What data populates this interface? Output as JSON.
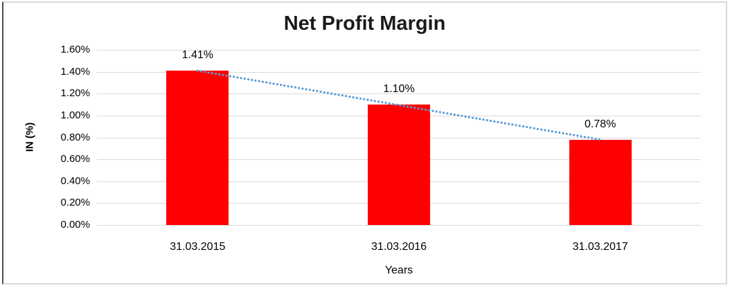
{
  "chart_data": {
    "type": "bar",
    "title": "Net Profit Margin",
    "xlabel": "Years",
    "ylabel": "IN (%)",
    "categories": [
      "31.03.2015",
      "31.03.2016",
      "31.03.2017"
    ],
    "values": [
      1.41,
      1.1,
      0.78
    ],
    "data_labels": [
      "1.41%",
      "1.10%",
      "0.78%"
    ],
    "y_ticks": [
      "0.00%",
      "0.20%",
      "0.40%",
      "0.60%",
      "0.80%",
      "1.00%",
      "1.20%",
      "1.40%",
      "1.60%"
    ],
    "y_tick_values": [
      0.0,
      0.2,
      0.4,
      0.6,
      0.8,
      1.0,
      1.2,
      1.4,
      1.6
    ],
    "ylim": [
      0,
      1.6
    ],
    "grid": true,
    "legend_position": "none",
    "trendline": {
      "type": "linear",
      "style": "dotted",
      "from_value": 1.41,
      "to_value": 0.78
    },
    "colors": {
      "bar": "#ff0000",
      "trendline": "#5b9bd5",
      "gridline": "#d9d9d9",
      "text": "#000000",
      "title_text": "#1a1a1a"
    }
  }
}
